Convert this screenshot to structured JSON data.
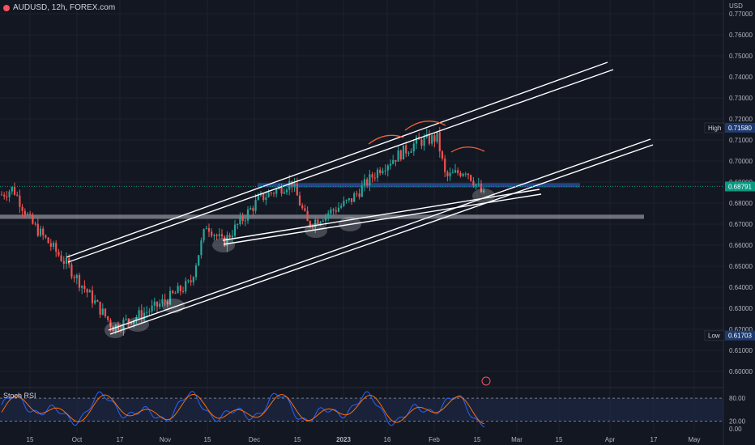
{
  "header": {
    "symbol_label": "AUDUSD, 12h, FOREX.com"
  },
  "colors": {
    "background": "#131722",
    "up": "#26a69a",
    "down": "#ef5350",
    "grid": "#1e222d",
    "channel": "#ffffff",
    "resistance_zone": "#2a4a9a",
    "support_zone": "#9598a1",
    "arc": "#f2613a",
    "rsi_k": "#2962ff",
    "rsi_d": "#ff6d00",
    "price_tag": "#089981"
  },
  "axis": {
    "currency": "USD",
    "price_ticks": [
      "0.77000",
      "0.76000",
      "0.75000",
      "0.74000",
      "0.73000",
      "0.72000",
      "0.71000",
      "0.70000",
      "0.69000",
      "0.68000",
      "0.67000",
      "0.66000",
      "0.65000",
      "0.64000",
      "0.63000",
      "0.62000",
      "0.61000",
      "0.60000"
    ],
    "time_ticks": [
      "15",
      "Oct",
      "17",
      "Nov",
      "15",
      "Dec",
      "15",
      "2023",
      "16",
      "Feb",
      "15",
      "Mar",
      "15",
      "Apr",
      "17",
      "May"
    ],
    "rsi_ticks": [
      "80.00",
      "20.00",
      "0.00"
    ]
  },
  "labels": {
    "high_label": "High",
    "high_value": "0.71580",
    "low_label": "Low",
    "low_value": "0.61703",
    "current_value": "0.68791",
    "indicator": "Stoch RSI"
  },
  "chart_data": {
    "type": "candlestick",
    "symbol": "AUDUSD",
    "timeframe": "12h",
    "high": 0.7158,
    "low": 0.61703,
    "last": 0.68791,
    "ylim": [
      0.595,
      0.772
    ],
    "key_closes": [
      {
        "x": "Sep 10",
        "y": 0.684
      },
      {
        "x": "Sep 13",
        "y": 0.687
      },
      {
        "x": "Sep 18",
        "y": 0.671
      },
      {
        "x": "Sep 29",
        "y": 0.652
      },
      {
        "x": "Oct 13",
        "y": 0.621
      },
      {
        "x": "Oct 21",
        "y": 0.63
      },
      {
        "x": "Oct 31",
        "y": 0.642
      },
      {
        "x": "Nov 11",
        "y": 0.67
      },
      {
        "x": "Nov 21",
        "y": 0.661
      },
      {
        "x": "Dec 1",
        "y": 0.682
      },
      {
        "x": "Dec 13",
        "y": 0.69
      },
      {
        "x": "Dec 22",
        "y": 0.67
      },
      {
        "x": "Jan 4",
        "y": 0.681
      },
      {
        "x": "Jan 13",
        "y": 0.697
      },
      {
        "x": "Jan 25",
        "y": 0.709
      },
      {
        "x": "Feb 2",
        "y": 0.711
      },
      {
        "x": "Feb 6",
        "y": 0.692
      },
      {
        "x": "Feb 12",
        "y": 0.696
      },
      {
        "x": "Feb 17",
        "y": 0.683
      }
    ],
    "zones": [
      {
        "name": "resistance",
        "y_range": [
          0.6875,
          0.6895
        ]
      },
      {
        "name": "support",
        "y_range": [
          0.6725,
          0.6745
        ]
      }
    ],
    "indicator": {
      "name": "Stoch RSI",
      "levels": [
        80,
        20
      ]
    },
    "grid": true
  }
}
